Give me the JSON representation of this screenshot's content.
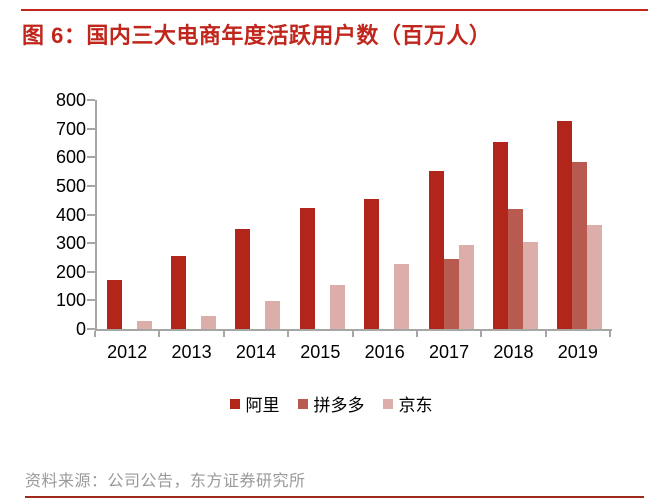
{
  "figure": {
    "title": "图 6：国内三大电商年度活跃用户数（百万人）",
    "source_note": "资料来源：公司公告，东方证券研究所"
  },
  "colors": {
    "title_red": "#C0261C",
    "top_rule": "#C0261C",
    "bottom_rule": "#9E2A1E",
    "axis_gray": "#A6A6A6",
    "tick_label_black": "#000000",
    "source_gray": "#9A9A9A",
    "series_ali": "#B1251A",
    "series_pdd": "#B85A50",
    "series_jd": "#DBAEAA"
  },
  "chart_data": {
    "type": "bar",
    "title": "国内三大电商年度活跃用户数（百万人）",
    "categories": [
      "2012",
      "2013",
      "2014",
      "2015",
      "2016",
      "2017",
      "2018",
      "2019"
    ],
    "series": [
      {
        "key": "ali",
        "name": "阿里",
        "color": "#B1251A",
        "values": [
          172,
          255,
          350,
          423,
          454,
          552,
          654,
          726
        ]
      },
      {
        "key": "pdd",
        "name": "拼多多",
        "color": "#B85A50",
        "values": [
          null,
          null,
          null,
          null,
          null,
          245,
          419,
          585
        ]
      },
      {
        "key": "jd",
        "name": "京东",
        "color": "#DBAEAA",
        "values": [
          29,
          47,
          97,
          155,
          227,
          293,
          305,
          362
        ]
      }
    ],
    "xlabel": "",
    "ylabel": "",
    "ylim": [
      0,
      800
    ],
    "yticks": [
      0,
      100,
      200,
      300,
      400,
      500,
      600,
      700,
      800
    ],
    "grid": false,
    "legend_position": "bottom"
  }
}
